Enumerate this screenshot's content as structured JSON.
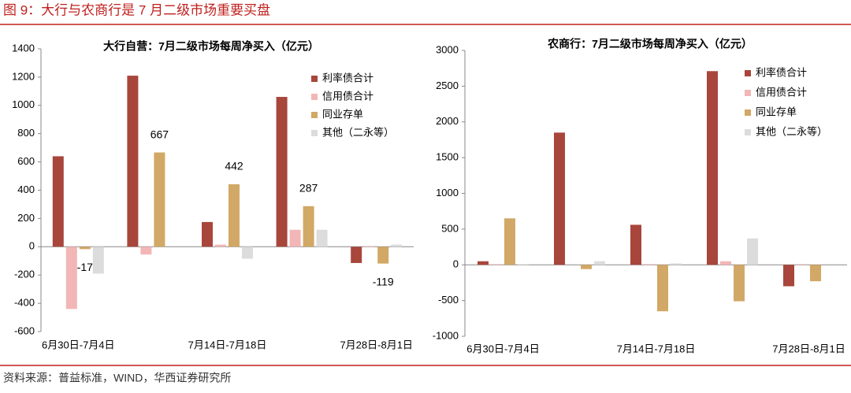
{
  "header": {
    "title": "图 9：大行与农商行是 7 月二级市场重要买盘"
  },
  "source": "资料来源：普益标准，WIND，华西证券研究所",
  "chart_data": [
    {
      "type": "bar",
      "title": "大行自营：7月二级市场每周净买入（亿元）",
      "categories": [
        "6月30日-7月4日",
        null,
        "7月14日-7月18日",
        null,
        "7月28日-8月1日"
      ],
      "series": [
        {
          "name": "利率债合计",
          "color": "#a8463c",
          "values": [
            640,
            1210,
            175,
            1060,
            -115
          ]
        },
        {
          "name": "信用债合计",
          "color": "#f2b6b6",
          "values": [
            -440,
            -55,
            15,
            120,
            5
          ]
        },
        {
          "name": "同业存单",
          "color": "#d2a866",
          "values": [
            -17,
            667,
            442,
            287,
            -119
          ],
          "show_labels": true
        },
        {
          "name": "其他（二永等）",
          "color": "#dcdcdc",
          "values": [
            -190,
            0,
            -85,
            120,
            15
          ]
        }
      ],
      "ylim": [
        -600,
        1400
      ],
      "yticks": [
        -600,
        -400,
        -200,
        0,
        200,
        400,
        600,
        800,
        1000,
        1200,
        1400
      ],
      "legend": "upper right"
    },
    {
      "type": "bar",
      "title": "农商行：7月二级市场每周净买入（亿元）",
      "categories": [
        "6月30日-7月4日",
        null,
        "7月14日-7月18日",
        null,
        "7月28日-8月1日"
      ],
      "series": [
        {
          "name": "利率债合计",
          "color": "#a8463c",
          "values": [
            50,
            1850,
            560,
            2710,
            -300
          ]
        },
        {
          "name": "信用债合计",
          "color": "#f2b6b6",
          "values": [
            10,
            0,
            10,
            50,
            10
          ]
        },
        {
          "name": "同业存单",
          "color": "#d2a866",
          "values": [
            650,
            -60,
            -650,
            -510,
            -230
          ]
        },
        {
          "name": "其他（二永等）",
          "color": "#dcdcdc",
          "values": [
            10,
            50,
            20,
            370,
            0
          ]
        }
      ],
      "ylim": [
        -1000,
        3000
      ],
      "yticks": [
        -1000,
        -500,
        0,
        500,
        1000,
        1500,
        2000,
        2500,
        3000
      ],
      "legend": "upper right"
    }
  ]
}
